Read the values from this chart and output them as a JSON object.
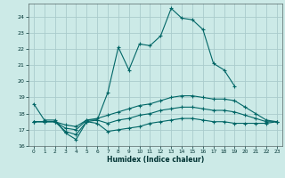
{
  "title": "",
  "xlabel": "Humidex (Indice chaleur)",
  "bg_color": "#cceae7",
  "grid_color": "#aacccc",
  "line_color": "#006666",
  "xlim": [
    -0.5,
    23.5
  ],
  "ylim": [
    16,
    24.8
  ],
  "yticks": [
    16,
    17,
    18,
    19,
    20,
    21,
    22,
    23,
    24
  ],
  "xticks": [
    0,
    1,
    2,
    3,
    4,
    5,
    6,
    7,
    8,
    9,
    10,
    11,
    12,
    13,
    14,
    15,
    16,
    17,
    18,
    19,
    20,
    21,
    22,
    23
  ],
  "line1_x": [
    0,
    1,
    2,
    3,
    4,
    5,
    6,
    7,
    8,
    9,
    10,
    11,
    12,
    13,
    14,
    15,
    16,
    17,
    18,
    19
  ],
  "line1_y": [
    18.6,
    17.6,
    17.6,
    16.8,
    16.4,
    17.5,
    17.6,
    19.3,
    22.1,
    20.7,
    22.3,
    22.2,
    22.8,
    24.5,
    23.9,
    23.8,
    23.2,
    21.1,
    20.7,
    19.7
  ],
  "line2_x": [
    0,
    1,
    2,
    3,
    4,
    5,
    6,
    7,
    8,
    9,
    10,
    11,
    12,
    13,
    14,
    15,
    16,
    17,
    18,
    19,
    20,
    21,
    22,
    23
  ],
  "line2_y": [
    17.5,
    17.5,
    17.5,
    16.9,
    16.7,
    17.5,
    17.4,
    16.9,
    17.0,
    17.1,
    17.2,
    17.4,
    17.5,
    17.6,
    17.7,
    17.7,
    17.6,
    17.5,
    17.5,
    17.4,
    17.4,
    17.4,
    17.4,
    17.5
  ],
  "line3_x": [
    0,
    1,
    2,
    3,
    4,
    5,
    6,
    7,
    8,
    9,
    10,
    11,
    12,
    13,
    14,
    15,
    16,
    17,
    18,
    19,
    20,
    21,
    22,
    23
  ],
  "line3_y": [
    17.5,
    17.5,
    17.5,
    17.3,
    17.2,
    17.6,
    17.7,
    17.9,
    18.1,
    18.3,
    18.5,
    18.6,
    18.8,
    19.0,
    19.1,
    19.1,
    19.0,
    18.9,
    18.9,
    18.8,
    18.4,
    18.0,
    17.6,
    17.5
  ],
  "line4_x": [
    0,
    1,
    2,
    3,
    4,
    5,
    6,
    7,
    8,
    9,
    10,
    11,
    12,
    13,
    14,
    15,
    16,
    17,
    18,
    19,
    20,
    21,
    22,
    23
  ],
  "line4_y": [
    17.5,
    17.5,
    17.5,
    17.1,
    17.0,
    17.6,
    17.6,
    17.4,
    17.6,
    17.7,
    17.9,
    18.0,
    18.2,
    18.3,
    18.4,
    18.4,
    18.3,
    18.2,
    18.2,
    18.1,
    17.9,
    17.7,
    17.5,
    17.5
  ]
}
